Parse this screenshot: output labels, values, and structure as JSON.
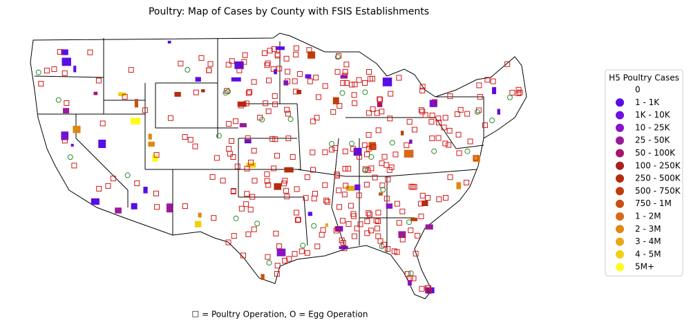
{
  "title": "Poultry: Map of Cases by County with FSIS Establishments",
  "caption": "☐ = Poultry Operation, O = Egg Operation",
  "legend": {
    "title": "H5 Poultry Cases",
    "items": [
      {
        "label": "0"
      },
      {
        "label": "1 - 1K",
        "color": "#5a0ce6"
      },
      {
        "label": "1K - 10K",
        "color": "#6e10e0"
      },
      {
        "label": "10 - 25K",
        "color": "#8a12c8"
      },
      {
        "label": "25 - 50K",
        "color": "#9a1a9a"
      },
      {
        "label": "50 - 100K",
        "color": "#a5156a"
      },
      {
        "label": "100 - 250K",
        "color": "#a8201e"
      },
      {
        "label": "250 - 500K",
        "color": "#b32c10"
      },
      {
        "label": "500 - 750K",
        "color": "#c03c0a"
      },
      {
        "label": "750 - 1M",
        "color": "#c85010"
      },
      {
        "label": "1 - 2M",
        "color": "#d8681a"
      },
      {
        "label": "2 - 3M",
        "color": "#e08810"
      },
      {
        "label": "3 - 4M",
        "color": "#e8a81a"
      },
      {
        "label": "4 - 5M",
        "color": "#f0d010"
      },
      {
        "label": "5M+",
        "color": "#fbfb20"
      }
    ]
  }
}
